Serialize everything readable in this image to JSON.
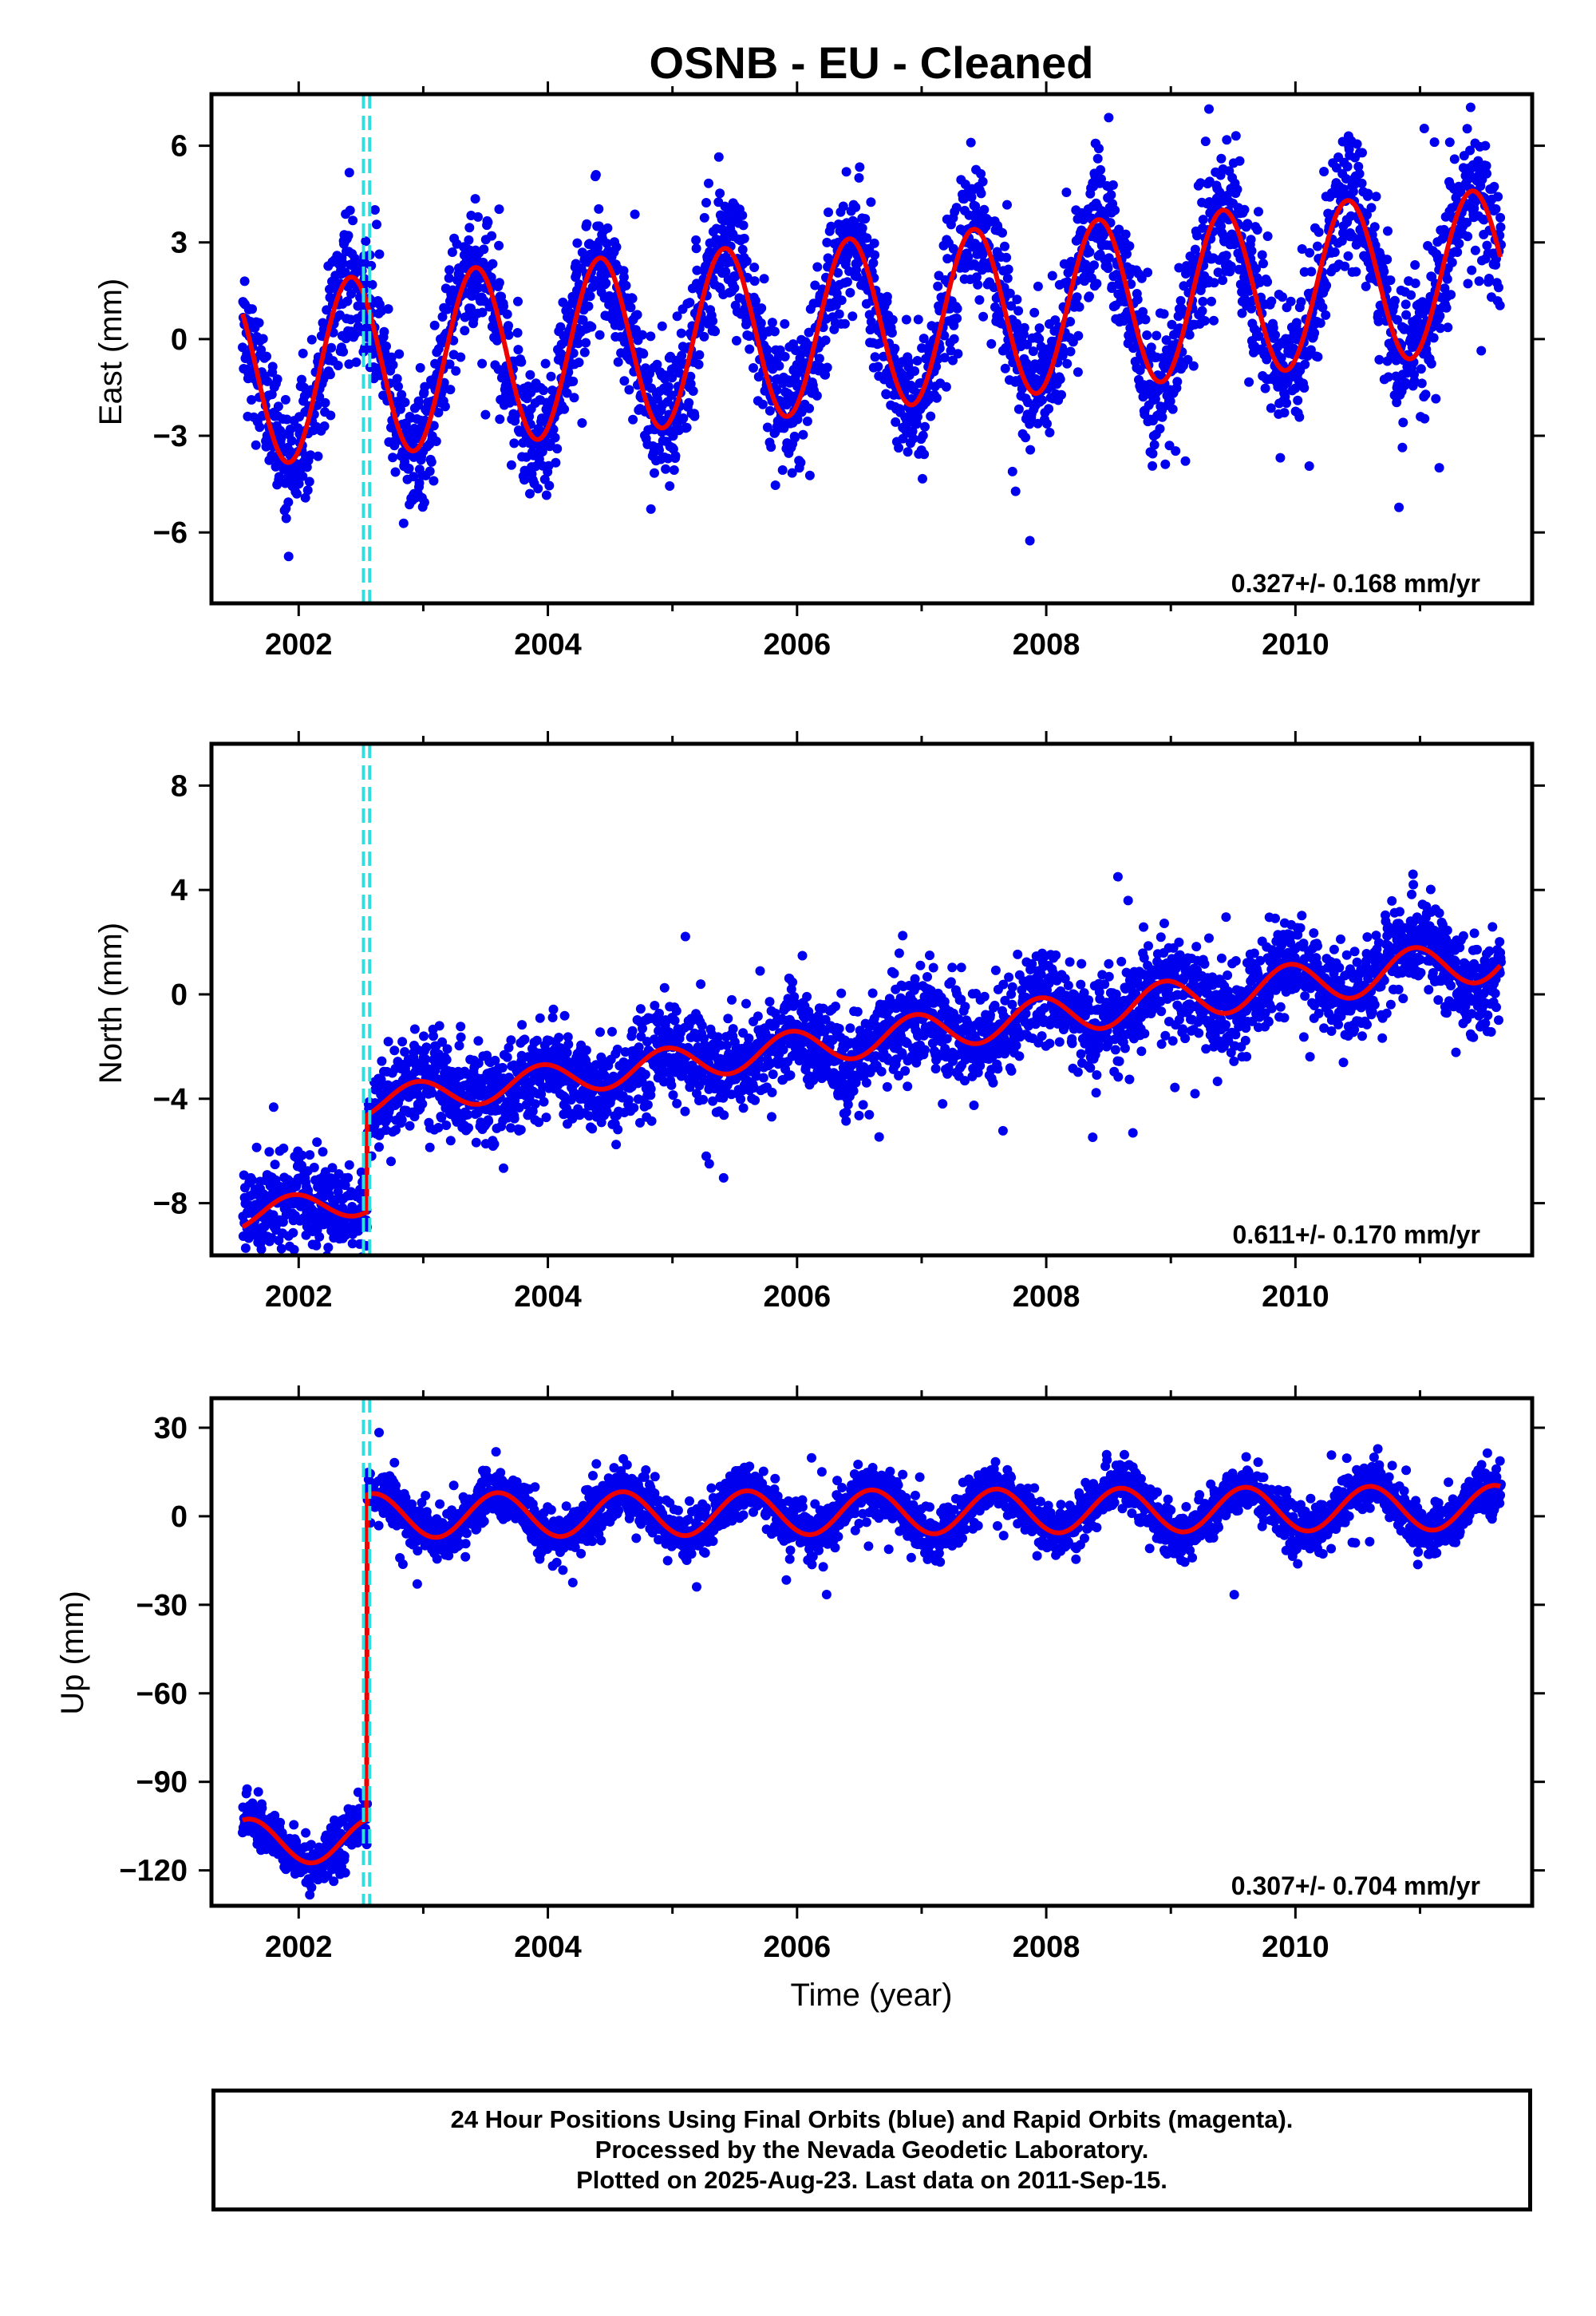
{
  "title": "OSNB  - EU - Cleaned",
  "x_axis_label": "Time (year)",
  "footer": {
    "line1": "24 Hour Positions Using Final Orbits (blue) and Rapid Orbits (magenta).",
    "line2": "Processed by the Nevada Geodetic Laboratory.",
    "line3": "Plotted on 2025-Aug-23. Last data on 2011-Sep-15."
  },
  "colors": {
    "points": "#0000ee",
    "model": "#ee0000",
    "offset": "#33dddd"
  },
  "chart_data": [
    {
      "type": "scatter",
      "title": "OSNB  - EU - Cleaned",
      "ylabel": "East (mm)",
      "xlabel": "",
      "xlim": [
        2001.3,
        2011.9
      ],
      "ylim": [
        -8.2,
        7.6
      ],
      "xticks": [
        2002,
        2004,
        2006,
        2008,
        2010
      ],
      "yticks": [
        -6,
        -3,
        0,
        3,
        6
      ],
      "rate_label": "0.327+/- 0.168 mm/yr",
      "equipment_change": [
        2002.52,
        2002.57
      ],
      "model": {
        "offset": -1.0,
        "rate": 0.327,
        "amplitude": 2.8,
        "amp_trend": -0.03,
        "phase_peak": 0.42,
        "step_time": 2002.55,
        "step": 0.0
      },
      "scatter": {
        "noise": 1.0,
        "spread": 1.0
      },
      "series": [
        {
          "name": "",
          "kind": "points"
        },
        {
          "name": "",
          "kind": "model"
        }
      ],
      "grid": false
    },
    {
      "type": "scatter",
      "ylabel": "North (mm)",
      "xlabel": "",
      "xlim": [
        2001.3,
        2011.9
      ],
      "ylim": [
        -10.0,
        9.6
      ],
      "xticks": [
        2002,
        2004,
        2006,
        2008,
        2010
      ],
      "yticks": [
        -8,
        -4,
        0,
        4,
        8
      ],
      "rate_label": "0.611+/- 0.170 mm/yr",
      "equipment_change": [
        2002.52,
        2002.57
      ],
      "model": {
        "offset": -8.2,
        "rate": 0.611,
        "amplitude": 0.55,
        "amp_trend": 0.03,
        "phase_peak": 0.95,
        "step_time": 2002.55,
        "step": 3.7
      },
      "scatter": {
        "noise": 0.85,
        "spread": 1.2
      },
      "series": [
        {
          "name": "",
          "kind": "points"
        },
        {
          "name": "",
          "kind": "model"
        }
      ],
      "grid": false
    },
    {
      "type": "scatter",
      "ylabel": "Up (mm)",
      "xlabel": "Time (year)",
      "xlim": [
        2001.3,
        2011.9
      ],
      "ylim": [
        -132,
        40
      ],
      "xticks": [
        2002,
        2004,
        2006,
        2008,
        2010
      ],
      "yticks": [
        -120,
        -90,
        -60,
        -30,
        0,
        30
      ],
      "rate_label": "0.307+/- 0.704 mm/yr",
      "equipment_change": [
        2002.52,
        2002.57
      ],
      "model": {
        "offset": -110.0,
        "rate": 0.307,
        "amplitude": 7.5,
        "amp_trend": 0.0,
        "phase_peak": 0.6,
        "step_time": 2002.55,
        "step": 110.0
      },
      "scatter": {
        "noise": 4.0,
        "spread": 1.0
      },
      "series": [
        {
          "name": "",
          "kind": "points"
        },
        {
          "name": "",
          "kind": "model"
        }
      ],
      "grid": false
    }
  ]
}
